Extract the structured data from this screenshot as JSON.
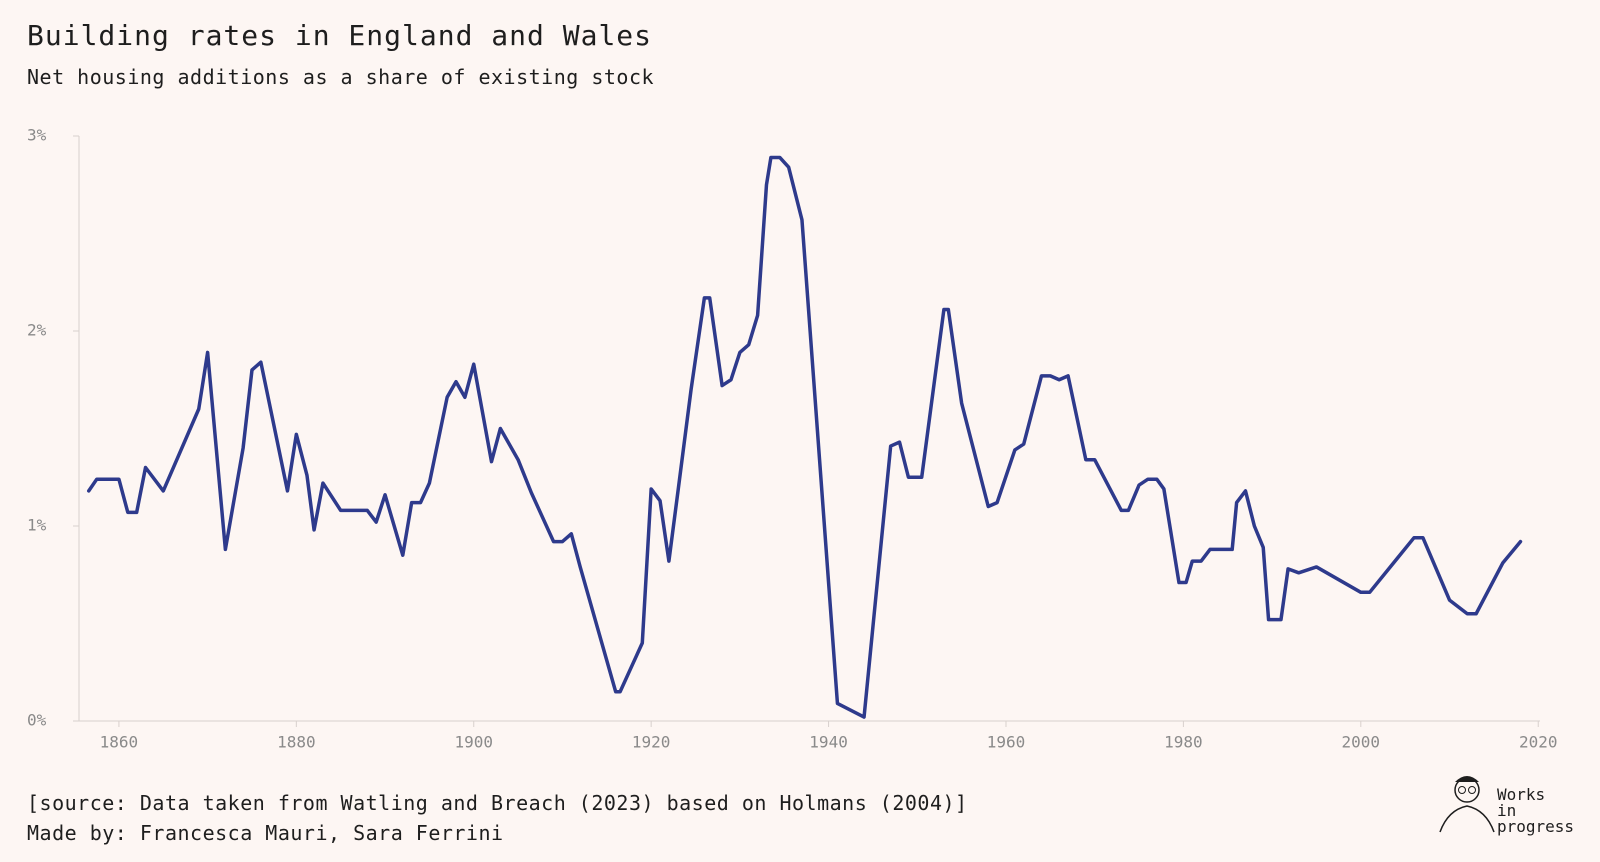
{
  "chart_data": {
    "type": "line",
    "title": "Building rates in England and Wales",
    "subtitle": "Net housing additions as a share of existing stock",
    "source": "[source: Data taken from Watling and Breach (2023) based on Holmans (2004)]",
    "credit": "Made by: Francesca Mauri, Sara Ferrini",
    "logo_text": [
      "Works",
      "in",
      "progress"
    ],
    "color": "#2e3a8c",
    "x": [
      1856.6,
      1857.5,
      1860,
      1861,
      1862,
      1863,
      1865,
      1869,
      1870,
      1872,
      1874,
      1875,
      1876,
      1879,
      1880,
      1881.2,
      1882,
      1883,
      1885,
      1887,
      1888,
      1889,
      1890,
      1892,
      1893,
      1894,
      1895,
      1897,
      1898,
      1899,
      1900,
      1902,
      1903,
      1905,
      1906.5,
      1909,
      1910,
      1911,
      1912,
      1916,
      1916.5,
      1919,
      1920,
      1921,
      1922,
      1923,
      1924.5,
      1926,
      1926.6,
      1928,
      1929,
      1930,
      1931,
      1932,
      1933,
      1933.5,
      1934.5,
      1935.5,
      1937,
      1941,
      1944,
      1947,
      1948,
      1949,
      1950.5,
      1953,
      1953.5,
      1955,
      1958,
      1959,
      1961,
      1962,
      1964,
      1965,
      1966,
      1967,
      1969,
      1970,
      1973,
      1973.8,
      1975,
      1976,
      1977,
      1977.8,
      1979.5,
      1980.3,
      1981,
      1982,
      1983,
      1985.5,
      1986,
      1987,
      1988,
      1989,
      1989.6,
      1991,
      1991.8,
      1993,
      1995,
      2000,
      2001,
      2006,
      2007,
      2010,
      2012,
      2013,
      2016,
      2018
    ],
    "values": [
      1.18,
      1.24,
      1.24,
      1.07,
      1.07,
      1.3,
      1.18,
      1.6,
      1.89,
      0.88,
      1.4,
      1.8,
      1.84,
      1.18,
      1.47,
      1.26,
      0.98,
      1.22,
      1.08,
      1.08,
      1.08,
      1.02,
      1.16,
      0.85,
      1.12,
      1.12,
      1.22,
      1.66,
      1.74,
      1.66,
      1.83,
      1.33,
      1.5,
      1.34,
      1.17,
      0.92,
      0.92,
      0.96,
      0.79,
      0.15,
      0.15,
      0.4,
      1.19,
      1.13,
      0.82,
      1.17,
      1.7,
      2.17,
      2.17,
      1.72,
      1.75,
      1.89,
      1.93,
      2.08,
      2.75,
      2.89,
      2.89,
      2.84,
      2.57,
      0.09,
      0.02,
      1.41,
      1.43,
      1.25,
      1.25,
      2.11,
      2.11,
      1.63,
      1.1,
      1.12,
      1.39,
      1.42,
      1.77,
      1.77,
      1.75,
      1.77,
      1.34,
      1.34,
      1.08,
      1.08,
      1.21,
      1.24,
      1.24,
      1.19,
      0.71,
      0.71,
      0.82,
      0.82,
      0.88,
      0.88,
      1.12,
      1.18,
      1.0,
      0.89,
      0.52,
      0.52,
      0.78,
      0.76,
      0.79,
      0.66,
      0.66,
      0.94,
      0.94,
      0.62,
      0.55,
      0.55,
      0.81,
      0.92
    ],
    "xlim": [
      1855.5,
      2020.2
    ],
    "xticks": [
      1860,
      1880,
      1900,
      1920,
      1940,
      1960,
      1980,
      2000,
      2020
    ],
    "ylim": [
      0,
      3
    ],
    "yticks": [
      {
        "value": 0,
        "label": "0%"
      },
      {
        "value": 1,
        "label": "1%"
      },
      {
        "value": 2,
        "label": "2%"
      },
      {
        "value": 3,
        "label": "3%"
      }
    ],
    "grid": false
  }
}
